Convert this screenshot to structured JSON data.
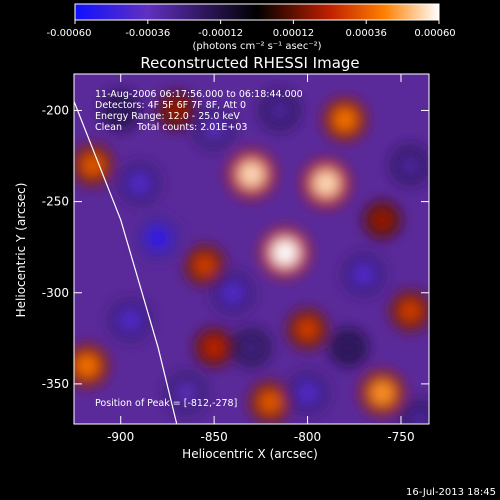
{
  "chart_data": {
    "type": "heatmap",
    "title": "Reconstructed RHESSI Image",
    "xlabel": "Heliocentric X (arcsec)",
    "ylabel": "Heliocentric Y (arcsec)",
    "xlim": [
      -925,
      -735
    ],
    "ylim": [
      -372,
      -180
    ],
    "xticks": [
      -900,
      -850,
      -800,
      -750
    ],
    "yticks": [
      -200,
      -250,
      -300,
      -350
    ],
    "xtick_labels": [
      "-900",
      "-850",
      "-800",
      "-750"
    ],
    "ytick_labels": [
      "-200",
      "-250",
      "-300",
      "-350"
    ],
    "colorbar": {
      "range": [
        -0.0006,
        0.0006
      ],
      "ticks": [
        -0.0006,
        -0.00036,
        -0.00012,
        0.00012,
        0.00036,
        0.0006
      ],
      "tick_labels": [
        "-0.00060",
        "-0.00036",
        "-0.00012",
        "0.00012",
        "0.00036",
        "0.00060"
      ],
      "unit_label": "(photons cm⁻² s⁻¹ asec⁻²)",
      "colormap": [
        "#1010ff",
        "#6030c0",
        "#000000",
        "#c02000",
        "#ff8000",
        "#ffffff"
      ]
    },
    "annotations": {
      "time": "11-Aug-2006 06:17:56.000 to 06:18:44.000",
      "detectors": "Detectors: 4F 5F 6F 7F 8F, Att 0",
      "energy": "Energy Range: 12.0 - 25.0 keV",
      "method": "Clean     Total counts: 2.01E+03",
      "peak": "Position of Peak = [-812,-278]"
    },
    "peak": {
      "x": -812,
      "y": -278
    },
    "limb_curve": [
      [
        -925,
        -195
      ],
      [
        -900,
        -260
      ],
      [
        -880,
        -330
      ],
      [
        -870,
        -372
      ]
    ],
    "blobs": [
      {
        "x": -830,
        "y": -235,
        "v": 0.00055
      },
      {
        "x": -812,
        "y": -278,
        "v": 0.0006
      },
      {
        "x": -790,
        "y": -240,
        "v": 0.00055
      },
      {
        "x": -780,
        "y": -205,
        "v": 0.0004
      },
      {
        "x": -760,
        "y": -355,
        "v": 0.00045
      },
      {
        "x": -745,
        "y": -310,
        "v": 0.0003
      },
      {
        "x": -915,
        "y": -230,
        "v": 0.00035
      },
      {
        "x": -918,
        "y": -340,
        "v": 0.0004
      },
      {
        "x": -855,
        "y": -285,
        "v": 0.0003
      },
      {
        "x": -850,
        "y": -330,
        "v": 0.00025
      },
      {
        "x": -800,
        "y": -320,
        "v": 0.0003
      },
      {
        "x": -870,
        "y": -200,
        "v": 0.0002
      },
      {
        "x": -820,
        "y": -360,
        "v": 0.00035
      },
      {
        "x": -760,
        "y": -260,
        "v": 0.0002
      },
      {
        "x": -840,
        "y": -300,
        "v": -0.0004
      },
      {
        "x": -880,
        "y": -270,
        "v": -0.0005
      },
      {
        "x": -895,
        "y": -315,
        "v": -0.0004
      },
      {
        "x": -800,
        "y": -355,
        "v": -0.0004
      },
      {
        "x": -770,
        "y": -290,
        "v": -0.0004
      },
      {
        "x": -815,
        "y": -200,
        "v": -0.0003
      },
      {
        "x": -890,
        "y": -240,
        "v": -0.0004
      },
      {
        "x": -850,
        "y": -210,
        "v": -0.00035
      },
      {
        "x": -745,
        "y": -230,
        "v": -0.0003
      },
      {
        "x": -865,
        "y": -355,
        "v": -0.00035
      },
      {
        "x": -778,
        "y": -330,
        "v": -0.0002
      },
      {
        "x": -900,
        "y": -200,
        "v": -0.0002
      },
      {
        "x": -830,
        "y": -330,
        "v": -0.00025
      },
      {
        "x": -740,
        "y": -370,
        "v": -0.0003
      }
    ]
  },
  "footer": {
    "timestamp": "16-Jul-2013 18:45"
  }
}
